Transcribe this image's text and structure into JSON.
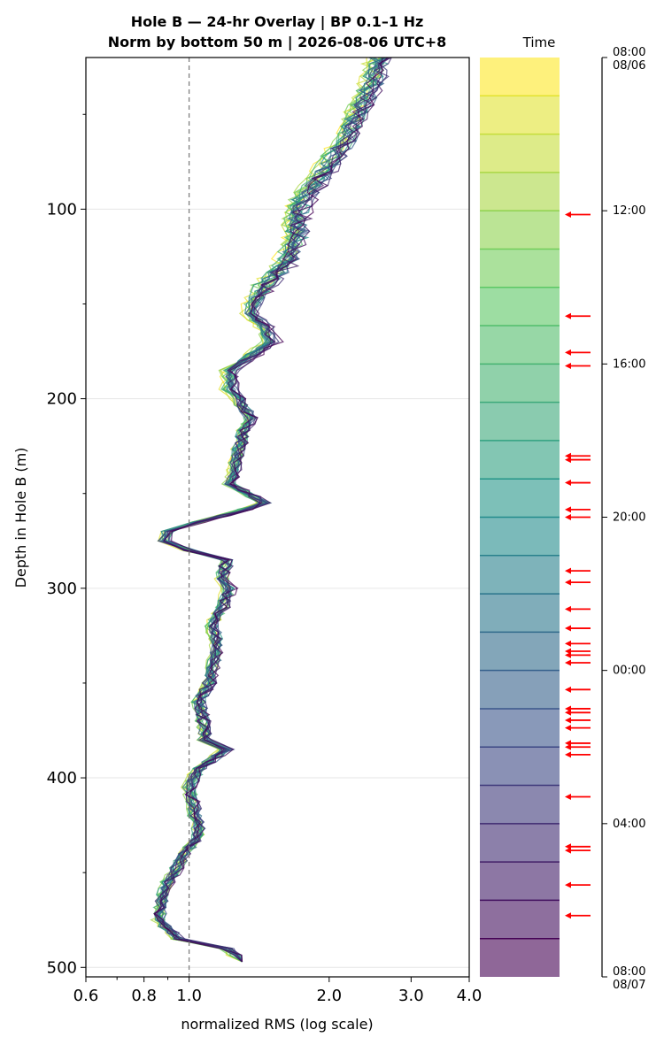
{
  "chart_data": {
    "type": "line",
    "title_line1": "Hole B — 24-hr Overlay  |  BP 0.1–1 Hz",
    "title_line2": "Norm by bottom 50 m  |  2026-08-06 UTC+8",
    "xlabel": "normalized RMS  (log scale)",
    "ylabel": "Depth in Hole B (m)",
    "xscale": "log",
    "xlim": [
      0.6,
      4.0
    ],
    "ylim": [
      505,
      20
    ],
    "y_inverted": true,
    "grid": "horizontal",
    "xticks": [
      0.6,
      0.8,
      1.0,
      2.0,
      3.0,
      4.0
    ],
    "xtick_labels": [
      "0.6",
      "0.8",
      "1.0",
      "2.0",
      "3.0",
      "4.0"
    ],
    "yticks": [
      100,
      200,
      300,
      400,
      500
    ],
    "ytick_labels": [
      "100",
      "200",
      "300",
      "400",
      "500"
    ],
    "reference_line": {
      "x": 1.0,
      "style": "dashed"
    },
    "colormap": "viridis",
    "n_traces": 24,
    "representative_profile": {
      "depth": [
        20,
        30,
        45,
        60,
        80,
        95,
        105,
        115,
        130,
        140,
        150,
        155,
        162,
        170,
        180,
        185,
        195,
        200,
        210,
        220,
        230,
        245,
        255,
        265,
        270,
        275,
        280,
        285,
        295,
        300,
        310,
        320,
        330,
        350,
        360,
        370,
        380,
        385,
        395,
        405,
        420,
        430,
        440,
        455,
        465,
        475,
        485,
        490,
        497
      ],
      "rms": [
        2.55,
        2.5,
        2.35,
        2.2,
        1.95,
        1.75,
        1.7,
        1.7,
        1.6,
        1.45,
        1.37,
        1.35,
        1.45,
        1.5,
        1.3,
        1.22,
        1.22,
        1.27,
        1.35,
        1.3,
        1.27,
        1.22,
        1.45,
        1.05,
        0.9,
        0.88,
        1.0,
        1.2,
        1.18,
        1.22,
        1.18,
        1.12,
        1.15,
        1.1,
        1.05,
        1.07,
        1.08,
        1.2,
        1.05,
        1.0,
        1.03,
        1.05,
        0.98,
        0.9,
        0.87,
        0.86,
        0.95,
        1.2,
        1.3
      ]
    },
    "colorbar": {
      "label": "Time",
      "ticks": [
        "08:00\n08/06",
        "12:00",
        "16:00",
        "20:00",
        "00:00",
        "04:00",
        "08:00\n08/07"
      ],
      "tick_hours": [
        0,
        4,
        8,
        12,
        16,
        20,
        24
      ],
      "bands": 24,
      "gap_markers_hours": [
        4.1,
        6.75,
        7.7,
        8.05,
        10.4,
        10.5,
        11.1,
        11.8,
        12.0,
        13.4,
        13.7,
        14.4,
        14.9,
        15.3,
        15.5,
        15.6,
        15.8,
        16.5,
        17.0,
        17.1,
        17.3,
        17.5,
        17.9,
        18.0,
        18.2,
        19.3,
        20.6,
        20.7,
        21.6,
        22.4
      ]
    }
  }
}
